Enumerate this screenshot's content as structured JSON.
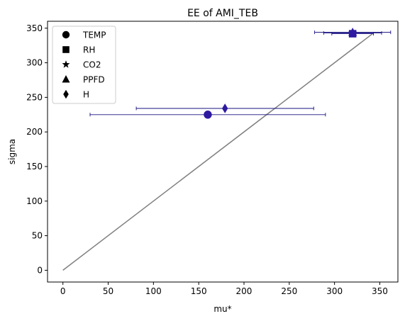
{
  "chart_data": {
    "type": "scatter",
    "title": "EE of AMI_TEB",
    "xlabel": "mu*",
    "ylabel": "sigma",
    "xlim": [
      -17,
      370
    ],
    "ylim": [
      -17,
      360
    ],
    "xticks": [
      0,
      50,
      100,
      150,
      200,
      250,
      300,
      350
    ],
    "yticks": [
      0,
      50,
      100,
      150,
      200,
      250,
      300,
      350
    ],
    "grid": false,
    "legend_position": "top-left",
    "marker_color": "#2e1aa0",
    "errorbar_color": "#1a1280",
    "reference_line": {
      "x": [
        0,
        342
      ],
      "y": [
        0,
        342
      ],
      "color": "#808080"
    },
    "series": [
      {
        "name": "TEMP",
        "marker": "circle",
        "x": 160,
        "y": 225,
        "xerr": 130
      },
      {
        "name": "RH",
        "marker": "square",
        "x": 320,
        "y": 342,
        "xerr": 23
      },
      {
        "name": "CO2",
        "marker": "star",
        "x": 320,
        "y": 343,
        "xerr": 32
      },
      {
        "name": "PPFD",
        "marker": "triangle",
        "x": 320,
        "y": 344,
        "xerr": 42
      },
      {
        "name": "H",
        "marker": "diamond",
        "x": 179,
        "y": 234,
        "xerr": 98
      }
    ]
  }
}
